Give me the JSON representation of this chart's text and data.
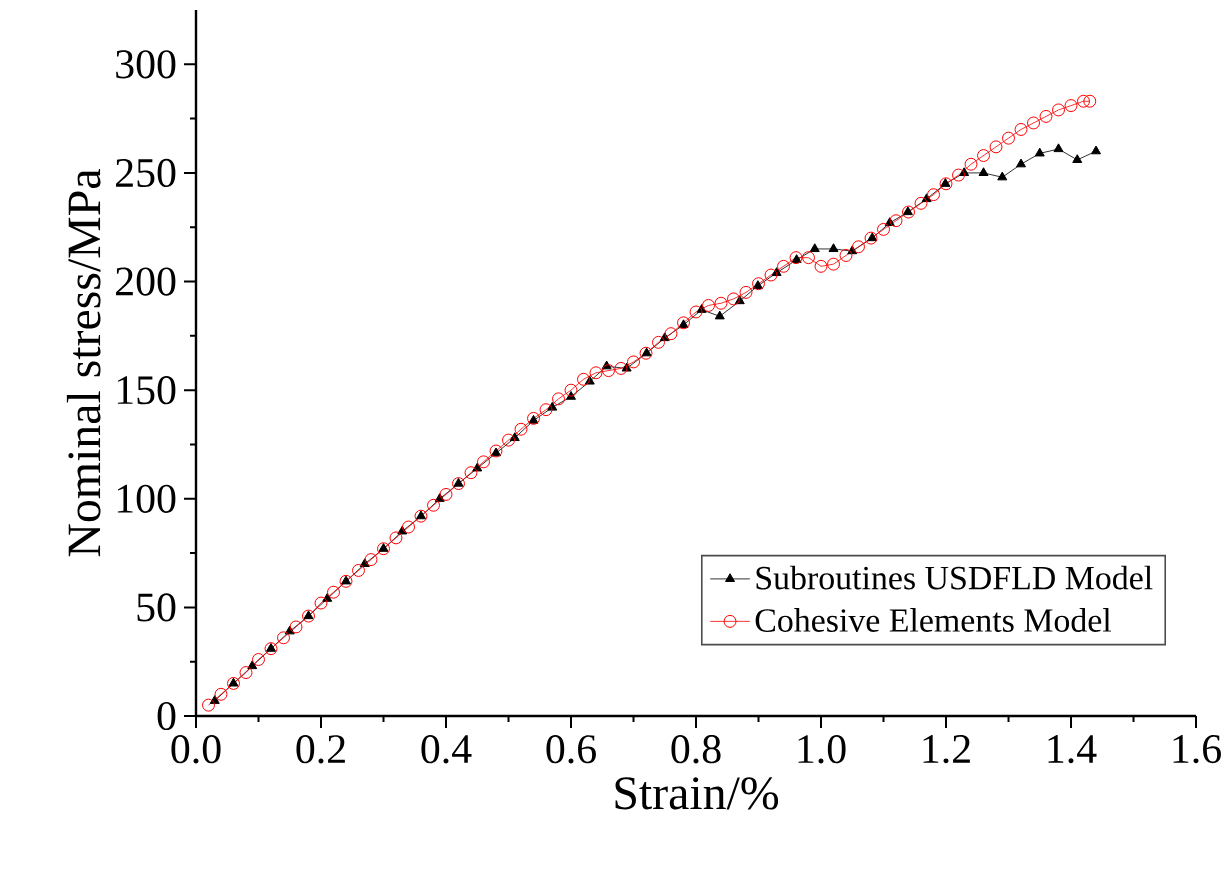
{
  "chart_data": {
    "type": "line",
    "xlabel": "Strain/%",
    "ylabel": "Nominal stress/MPa",
    "xlim": [
      0,
      1.6
    ],
    "ylim": [
      0,
      325
    ],
    "xticks": [
      {
        "value": 0,
        "label": "0.0"
      },
      0.2,
      0.4,
      0.6,
      0.8,
      {
        "value": 1,
        "label": "1.0"
      },
      1.2,
      1.4,
      1.6
    ],
    "yticks": [
      0,
      50,
      100,
      150,
      200,
      250,
      300
    ],
    "grid": false,
    "legend": "bottom right",
    "line_style": "solid",
    "series": [
      {
        "name": "Subroutines USDFLD  Model",
        "color": "#000000",
        "marker": "triangle",
        "x": [
          0.03,
          0.06,
          0.09,
          0.12,
          0.15,
          0.18,
          0.21,
          0.24,
          0.27,
          0.3,
          0.33,
          0.36,
          0.39,
          0.42,
          0.45,
          0.48,
          0.51,
          0.54,
          0.57,
          0.6,
          0.63,
          0.657,
          0.689,
          0.721,
          0.75,
          0.78,
          0.809,
          0.838,
          0.87,
          0.899,
          0.929,
          0.961,
          0.99,
          1.02,
          1.05,
          1.082,
          1.11,
          1.139,
          1.169,
          1.199,
          1.229,
          1.26,
          1.29,
          1.32,
          1.35,
          1.38,
          1.41,
          1.44
        ],
        "values": [
          7,
          15,
          23,
          31,
          39,
          46,
          54,
          62,
          70,
          77,
          85,
          92,
          100,
          107,
          114,
          121,
          128,
          136,
          142,
          147,
          154,
          161,
          160,
          167,
          174,
          180,
          187,
          184,
          191,
          198,
          204,
          210,
          215,
          215,
          214,
          220,
          227,
          232,
          238,
          245,
          250,
          250,
          248,
          254,
          259,
          261,
          256,
          260
        ]
      },
      {
        "name": "Cohesive Elements Model",
        "color": "#ff0000",
        "marker": "circle",
        "x": [
          0.02,
          0.04,
          0.06,
          0.08,
          0.1,
          0.12,
          0.14,
          0.16,
          0.18,
          0.2,
          0.22,
          0.24,
          0.26,
          0.28,
          0.3,
          0.32,
          0.34,
          0.36,
          0.38,
          0.4,
          0.42,
          0.44,
          0.46,
          0.48,
          0.5,
          0.52,
          0.54,
          0.56,
          0.58,
          0.6,
          0.62,
          0.64,
          0.66,
          0.68,
          0.7,
          0.72,
          0.74,
          0.76,
          0.78,
          0.8,
          0.82,
          0.84,
          0.86,
          0.88,
          0.9,
          0.92,
          0.94,
          0.96,
          0.98,
          1.0,
          1.02,
          1.04,
          1.06,
          1.08,
          1.1,
          1.12,
          1.14,
          1.16,
          1.18,
          1.2,
          1.22,
          1.24,
          1.26,
          1.28,
          1.3,
          1.32,
          1.34,
          1.36,
          1.38,
          1.4,
          1.42,
          1.43
        ],
        "values": [
          5,
          10,
          15,
          20,
          26,
          31,
          36,
          41,
          46,
          52,
          57,
          62,
          67,
          72,
          77,
          82,
          87,
          92,
          97,
          102,
          107,
          112,
          117,
          122,
          127,
          132,
          137,
          141,
          146,
          150,
          155,
          158,
          159,
          160,
          163,
          167,
          172,
          176,
          181,
          186,
          189,
          190,
          192,
          195,
          199,
          203,
          207,
          211,
          211,
          207,
          208,
          212,
          216,
          220,
          224,
          228,
          232,
          236,
          240,
          245,
          249,
          254,
          258,
          262,
          266,
          270,
          273,
          276,
          279,
          281,
          283,
          283
        ]
      }
    ]
  }
}
